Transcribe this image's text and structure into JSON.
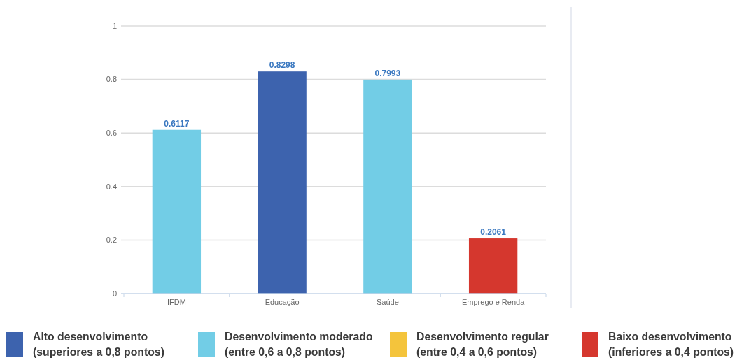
{
  "chart_data": {
    "type": "bar",
    "categories": [
      "IFDM",
      "Educação",
      "Saúde",
      "Emprego e Renda"
    ],
    "series": [
      {
        "name": "Alto desenvolvimento\n(superiores a 0,8 pontos)",
        "color": "#3d63ae",
        "values": [
          null,
          0.8298,
          null,
          null
        ]
      },
      {
        "name": "Desenvolvimento moderado\n(entre 0,6 a 0,8 pontos)",
        "color": "#72cde6",
        "values": [
          0.6117,
          null,
          0.7993,
          null
        ]
      },
      {
        "name": "Desenvolvimento regular\n(entre 0,4 a 0,6 pontos)",
        "color": "#f4c43c",
        "values": [
          null,
          null,
          null,
          null
        ]
      },
      {
        "name": "Baixo desenvolvimento\n(inferiores a 0,4 pontos)",
        "color": "#d5372e",
        "values": [
          null,
          null,
          null,
          0.2061
        ]
      }
    ],
    "ylim": [
      0,
      1
    ],
    "yticks": [
      0,
      0.2,
      0.4,
      0.6,
      0.8,
      1
    ],
    "grid": "y",
    "legend": "bottom",
    "data_labels": true
  }
}
